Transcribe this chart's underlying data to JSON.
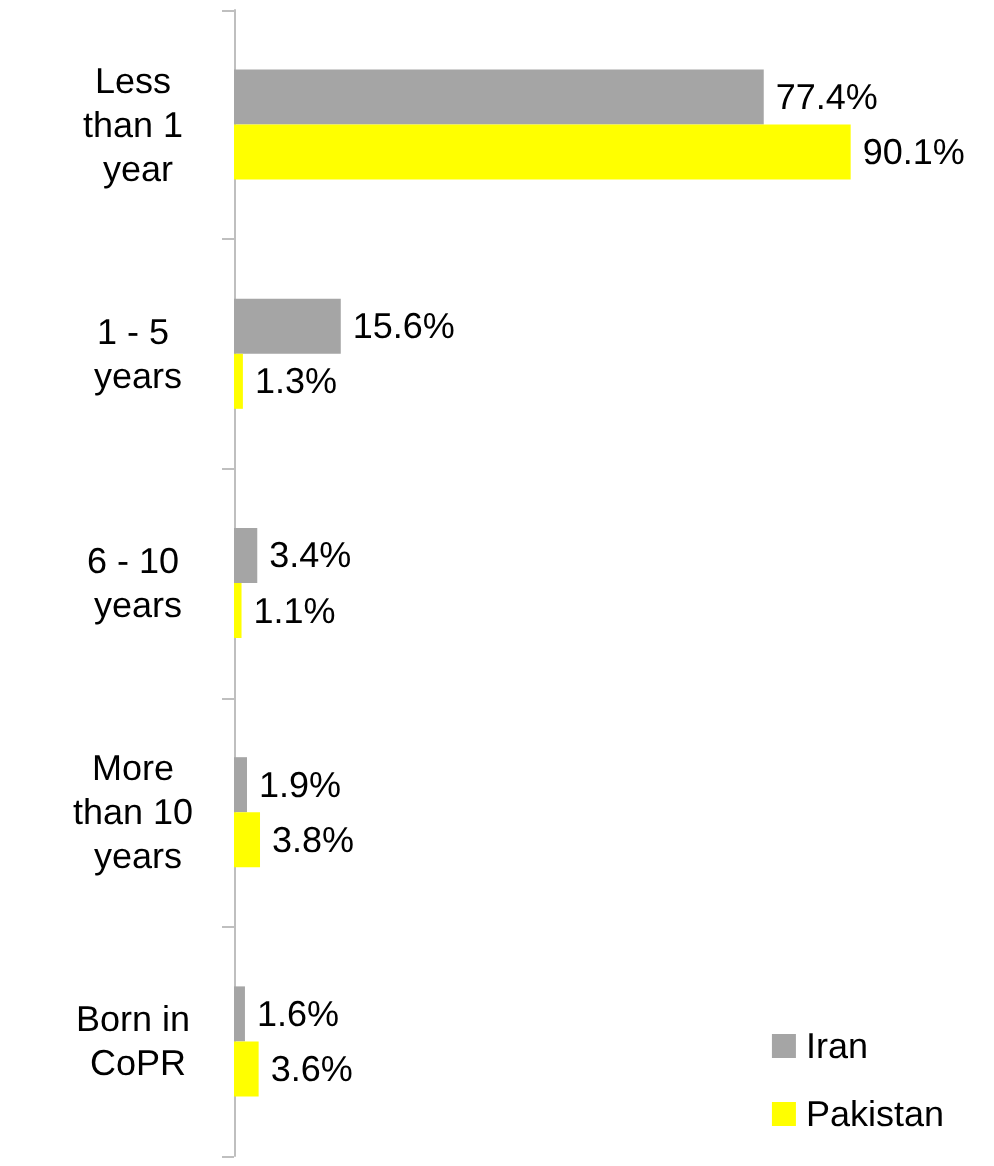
{
  "chart_data": {
    "type": "bar",
    "orientation": "horizontal",
    "categories": [
      "Less than 1 year",
      "1 - 5 years",
      "6 - 10 years",
      "More than 10 years",
      "Born in CoPR"
    ],
    "series": [
      {
        "name": "Iran",
        "color": "#a5a5a5",
        "values": [
          77.4,
          15.6,
          3.4,
          1.9,
          1.6
        ],
        "value_labels": [
          "77.4%",
          "15.6%",
          "3.4%",
          "1.9%",
          "1.6%"
        ]
      },
      {
        "name": "Pakistan",
        "color": "#ffff00",
        "values": [
          90.1,
          1.3,
          1.1,
          3.8,
          3.6
        ],
        "value_labels": [
          "90.1%",
          "1.3%",
          "1.1%",
          "3.8%",
          "3.6%"
        ]
      }
    ],
    "legend": "bottom right"
  }
}
